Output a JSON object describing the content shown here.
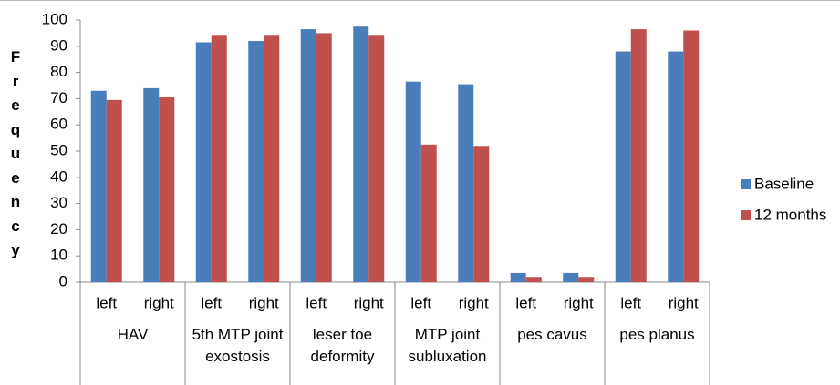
{
  "chart_data": {
    "type": "bar",
    "y_label": "Frequency",
    "categories": [
      "left",
      "right",
      "left",
      "right",
      "left",
      "right",
      "left",
      "right",
      "left",
      "right",
      "left",
      "right"
    ],
    "groups": [
      "HAV",
      "5th MTP joint exostosis",
      "leser toe deformity",
      "MTP joint subluxation",
      "pes cavus",
      "pes planus"
    ],
    "series": [
      {
        "name": "Baseline",
        "color": "#4a7ebb",
        "values": [
          73,
          74,
          91.5,
          92,
          96.5,
          97.5,
          76.5,
          75.5,
          3.5,
          3.5,
          88,
          88
        ]
      },
      {
        "name": "12 months",
        "color": "#c0504d",
        "values": [
          69.5,
          70.5,
          94,
          94,
          95,
          94,
          52.5,
          52,
          2,
          2,
          96.5,
          96
        ]
      }
    ],
    "ylim": [
      0,
      100
    ],
    "yticks": [
      0,
      10,
      20,
      30,
      40,
      50,
      60,
      70,
      80,
      90,
      100
    ],
    "legend": "right"
  }
}
